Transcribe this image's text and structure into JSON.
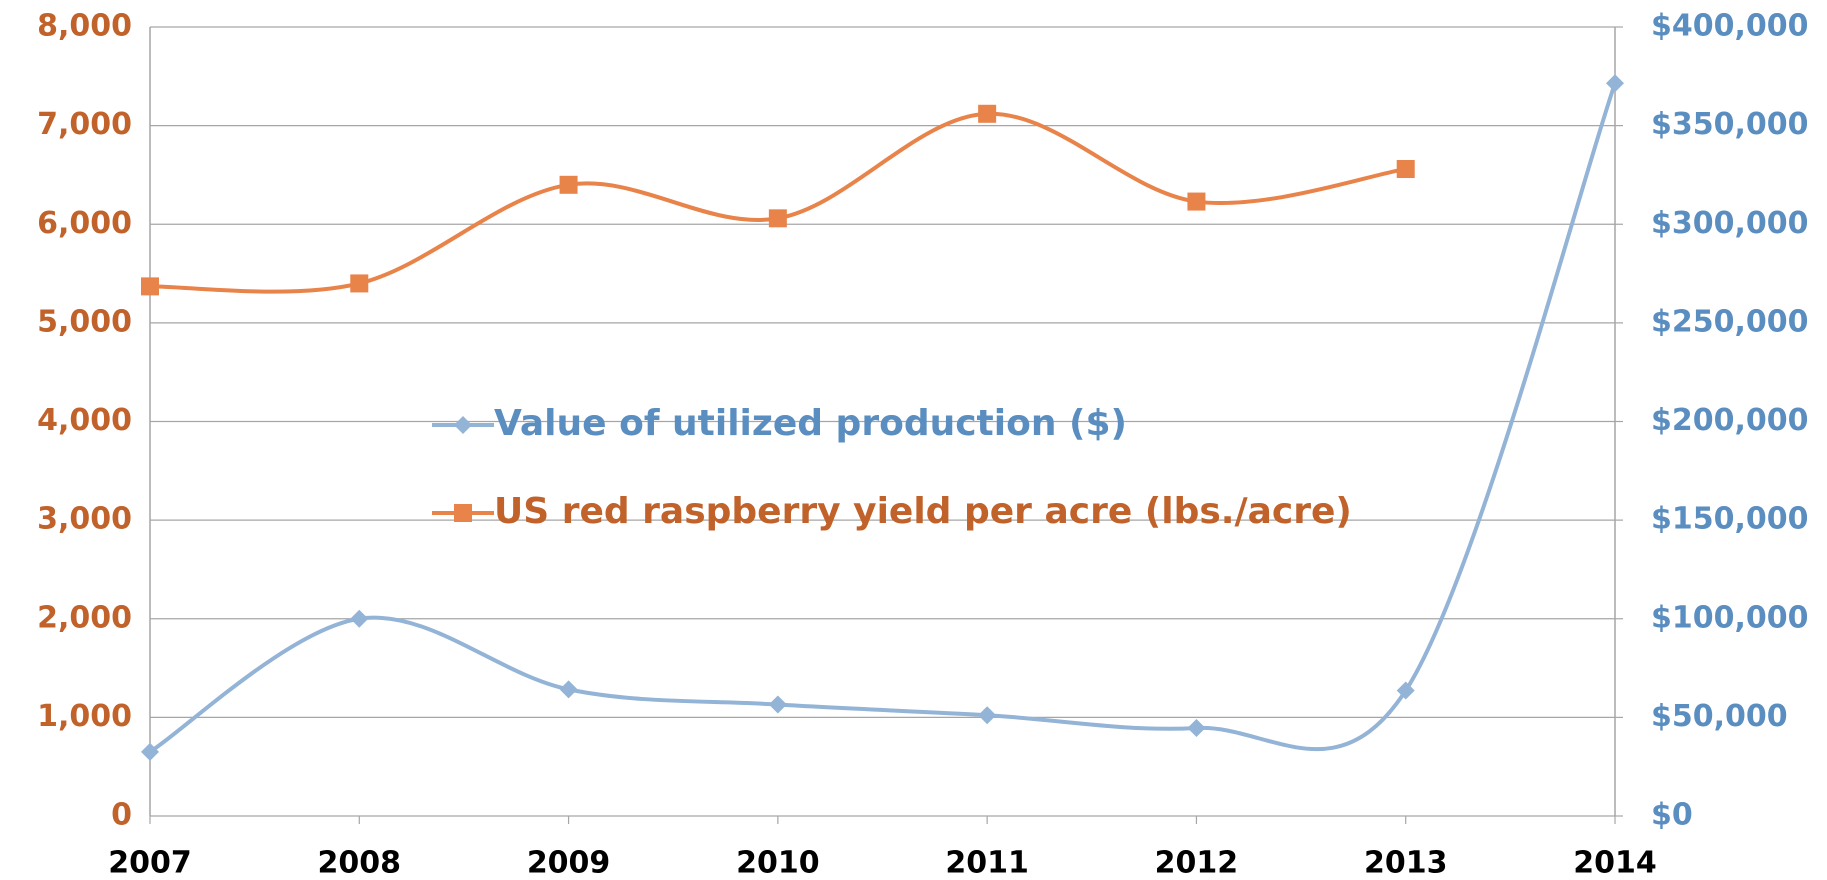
{
  "chart_data": {
    "type": "line",
    "categories": [
      "2007",
      "2008",
      "2009",
      "2010",
      "2011",
      "2012",
      "2013",
      "2014"
    ],
    "series": [
      {
        "name": "Value of utilized production ($)",
        "color": "#93b4d6",
        "text_color": "#5b8ec0",
        "marker": "diamond",
        "axis": "y2",
        "values": [
          32500,
          100000,
          64200,
          56500,
          51100,
          44600,
          63600,
          371500
        ]
      },
      {
        "name": "US red raspberry yield per acre (lbs./acre)",
        "color": "#e8834a",
        "text_color": "#c0622a",
        "marker": "square",
        "values": [
          5370,
          5400,
          6400,
          6060,
          7120,
          6230,
          6560,
          null
        ]
      }
    ],
    "ylim": [
      0,
      8000
    ],
    "yticks": [
      0,
      {
        "value": 1000,
        "label": "1,000"
      },
      {
        "value": 2000,
        "label": "2,000"
      },
      {
        "value": 3000,
        "label": "3,000"
      },
      {
        "value": 4000,
        "label": "4,000"
      },
      {
        "value": 5000,
        "label": "5,000"
      },
      {
        "value": 6000,
        "label": "6,000"
      },
      {
        "value": 7000,
        "label": "7,000"
      },
      {
        "value": 8000,
        "label": "8,000"
      }
    ],
    "y2lim": [
      0,
      400000
    ],
    "y2ticks": [
      {
        "value": 0,
        "label": "$0"
      },
      {
        "value": 50000,
        "label": "$50,000"
      },
      {
        "value": 100000,
        "label": "$100,000"
      },
      {
        "value": 150000,
        "label": "$150,000"
      },
      {
        "value": 200000,
        "label": "$200,000"
      },
      {
        "value": 250000,
        "label": "$250,000"
      },
      {
        "value": 300000,
        "label": "$300,000"
      },
      {
        "value": 350000,
        "label": "$350,000"
      },
      {
        "value": 400000,
        "label": "$400,000"
      }
    ],
    "grid": true,
    "smooth": true,
    "legend": "center"
  }
}
